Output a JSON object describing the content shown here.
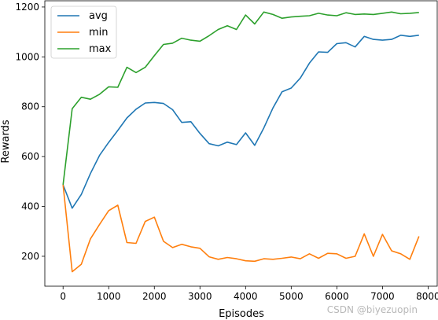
{
  "watermark": "CSDN @biyezuopin",
  "chart_data": {
    "type": "line",
    "title": "",
    "xlabel": "Episodes",
    "ylabel": "Rewards",
    "xlim": [
      -400,
      8200
    ],
    "ylim": [
      80,
      1225
    ],
    "xticks": [
      0,
      1000,
      2000,
      3000,
      4000,
      5000,
      6000,
      7000,
      8000
    ],
    "yticks": [
      200,
      400,
      600,
      800,
      1000,
      1200
    ],
    "grid": false,
    "legend_position": "top-left",
    "x": [
      0,
      200,
      400,
      600,
      800,
      1000,
      1200,
      1400,
      1600,
      1800,
      2000,
      2200,
      2400,
      2600,
      2800,
      3000,
      3200,
      3400,
      3600,
      3800,
      4000,
      4200,
      4400,
      4600,
      4800,
      5000,
      5200,
      5400,
      5600,
      5800,
      6000,
      6200,
      6400,
      6600,
      6800,
      7000,
      7200,
      7400,
      7600,
      7800
    ],
    "series": [
      {
        "name": "avg",
        "color": "#1f77b4",
        "values": [
          487,
          393,
          448,
          532,
          605,
          657,
          705,
          755,
          790,
          815,
          817,
          813,
          788,
          737,
          740,
          693,
          652,
          643,
          658,
          648,
          695,
          645,
          715,
          795,
          860,
          875,
          915,
          975,
          1020,
          1018,
          1053,
          1057,
          1040,
          1082,
          1070,
          1067,
          1070,
          1087,
          1082,
          1087
        ]
      },
      {
        "name": "min",
        "color": "#ff7f0e",
        "values": [
          487,
          138,
          168,
          270,
          328,
          383,
          405,
          255,
          252,
          340,
          357,
          260,
          235,
          248,
          238,
          232,
          198,
          188,
          195,
          190,
          182,
          180,
          190,
          188,
          192,
          197,
          190,
          210,
          192,
          212,
          210,
          192,
          200,
          290,
          200,
          288,
          222,
          210,
          188,
          280
        ]
      },
      {
        "name": "max",
        "color": "#2ca02c",
        "values": [
          487,
          792,
          838,
          830,
          850,
          880,
          878,
          958,
          937,
          958,
          1005,
          1050,
          1055,
          1075,
          1067,
          1063,
          1085,
          1110,
          1125,
          1110,
          1168,
          1132,
          1180,
          1170,
          1155,
          1160,
          1163,
          1165,
          1175,
          1168,
          1165,
          1177,
          1170,
          1172,
          1170,
          1175,
          1180,
          1173,
          1175,
          1178
        ]
      }
    ]
  }
}
